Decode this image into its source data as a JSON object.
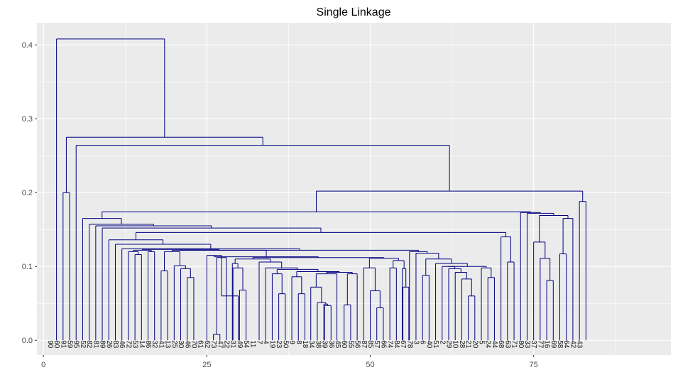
{
  "chart_data": {
    "type": "dendrogram",
    "title": "Single Linkage",
    "xlabel": "",
    "ylabel": "",
    "xlim": [
      -1,
      96
    ],
    "ylim": [
      -0.02,
      0.43
    ],
    "x_ticks": [
      0,
      25,
      50,
      75
    ],
    "y_ticks": [
      0.0,
      0.1,
      0.2,
      0.3,
      0.4
    ],
    "x_tick_labels": [
      "0",
      "25",
      "50",
      "75"
    ],
    "y_tick_labels": [
      "0.0",
      "0.1",
      "0.2",
      "0.3",
      "0.4"
    ],
    "grid": true,
    "background": "#ebebeb",
    "grid_color": "#ffffff",
    "line_color": "#000080",
    "leaf_labels": [
      "90",
      "60",
      "91",
      "59",
      "95",
      "52",
      "82",
      "81",
      "89",
      "26",
      "83",
      "46",
      "72",
      "53",
      "14",
      "86",
      "32",
      "41",
      "13",
      "25",
      "30",
      "46",
      "70",
      "61",
      "62",
      "73",
      "47",
      "22",
      "31",
      "49",
      "54",
      "11",
      "7",
      "4",
      "19",
      "23",
      "50",
      "9",
      "8",
      "18",
      "34",
      "38",
      "39",
      "36",
      "45",
      "60",
      "55",
      "56",
      "87",
      "85",
      "57",
      "66",
      "74",
      "84",
      "67",
      "78",
      "3",
      "6",
      "40",
      "51",
      "2",
      "29",
      "10",
      "28",
      "21",
      "20",
      "5",
      "24",
      "44",
      "68",
      "63",
      "71",
      "80",
      "33",
      "37",
      "77",
      "16",
      "69",
      "58",
      "64",
      "42",
      "43"
    ],
    "merges": [
      {
        "left": 26,
        "right": 27,
        "height": 0.008
      },
      {
        "left": 44,
        "right": 45,
        "height": 0.046
      },
      {
        "left": 43,
        "right": 46,
        "height": 0.048
      },
      {
        "left": 42,
        "right": 47,
        "height": 0.051
      },
      {
        "left": 40,
        "right": 48,
        "height": 0.072
      },
      {
        "left": 48,
        "right": 49,
        "height": 0.049
      },
      {
        "left": 53,
        "right": 54,
        "height": 0.044
      },
      {
        "left": 52,
        "right": 55,
        "height": 0.067
      },
      {
        "left": 65,
        "right": 66,
        "height": 0.06
      },
      {
        "left": 31,
        "right": 32,
        "height": 0.068
      },
      {
        "left": 60,
        "right": 61,
        "height": 0.073
      },
      {
        "left": 78,
        "right": 79,
        "height": 0.081
      },
      {
        "left": 12,
        "right": 13,
        "height": 0.116
      },
      {
        "left": 22,
        "right": 23,
        "height": 0.085
      }
    ]
  }
}
